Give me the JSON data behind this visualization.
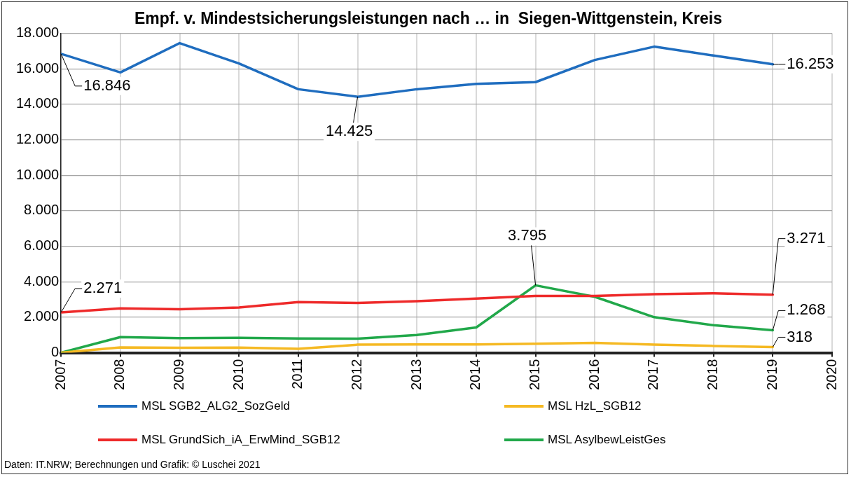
{
  "chart_data": {
    "type": "line",
    "title": "Empf. v. Mindestsicherungsleistungen nach … in  Siegen-Wittgenstein, Kreis",
    "x": [
      2007,
      2008,
      2009,
      2010,
      2011,
      2012,
      2013,
      2014,
      2015,
      2016,
      2017,
      2018,
      2019
    ],
    "xlim": [
      2007,
      2020
    ],
    "xticks": [
      2007,
      2008,
      2009,
      2010,
      2011,
      2012,
      2013,
      2014,
      2015,
      2016,
      2017,
      2018,
      2019,
      2020
    ],
    "ylim": [
      0,
      18000
    ],
    "yticks": [
      0,
      {
        "value": 2000,
        "label": "2.000"
      },
      {
        "value": 4000,
        "label": "4.000"
      },
      {
        "value": 6000,
        "label": "6.000"
      },
      {
        "value": 8000,
        "label": "8.000"
      },
      {
        "value": 10000,
        "label": "10.000"
      },
      {
        "value": 12000,
        "label": "12.000"
      },
      {
        "value": 14000,
        "label": "14.000"
      },
      {
        "value": 16000,
        "label": "16.000"
      },
      {
        "value": 18000,
        "label": "18.000"
      }
    ],
    "grid": true,
    "legend": "bottom",
    "marker": "none",
    "line_style": "solid",
    "series": [
      {
        "name": "MSL SGB2_ALG2_SozGeld",
        "color": "#1f6dbf",
        "values": [
          16846,
          15800,
          17450,
          16300,
          14850,
          14425,
          14850,
          15150,
          15250,
          16500,
          17250,
          16750,
          16253
        ],
        "value_labels": [
          "16.846",
          null,
          null,
          null,
          null,
          "14.425",
          null,
          null,
          null,
          null,
          null,
          null,
          "16.253"
        ]
      },
      {
        "name": "MSL HzL_SGB12",
        "color": "#f5b923",
        "values": [
          0,
          300,
          280,
          290,
          220,
          450,
          460,
          460,
          500,
          550,
          450,
          380,
          318
        ],
        "value_labels": [
          null,
          null,
          null,
          null,
          null,
          null,
          null,
          null,
          null,
          null,
          null,
          null,
          "318"
        ]
      },
      {
        "name": "MSL GrundSich_iA_ErwMind_SGB12",
        "color": "#ee2a2a",
        "values": [
          2271,
          2500,
          2450,
          2550,
          2850,
          2800,
          2900,
          3050,
          3200,
          3200,
          3300,
          3350,
          3271
        ],
        "value_labels": [
          "2.271",
          null,
          null,
          null,
          null,
          null,
          null,
          null,
          null,
          null,
          null,
          null,
          "3.271"
        ]
      },
      {
        "name": "MSL AsylbewLeistGes",
        "color": "#21a84a",
        "values": [
          0,
          880,
          820,
          840,
          800,
          790,
          1000,
          1420,
          3795,
          3150,
          2000,
          1550,
          1268
        ],
        "value_labels": [
          null,
          null,
          null,
          null,
          null,
          null,
          null,
          null,
          "3.795",
          null,
          null,
          null,
          "1.268"
        ]
      }
    ],
    "annotations": [
      "Daten: IT.NRW; Berechnungen und Grafik: © Luschei 2021"
    ]
  }
}
